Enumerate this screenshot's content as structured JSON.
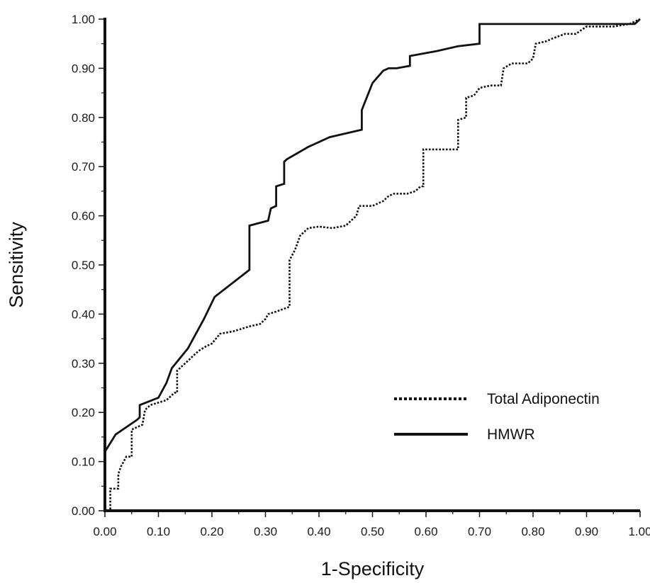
{
  "chart_data": {
    "type": "line",
    "title": "",
    "xlabel": "1-Specificity",
    "ylabel": "Sensitivity",
    "xlim": [
      0,
      1
    ],
    "ylim": [
      0,
      1
    ],
    "grid": false,
    "legend_position": "bottom-right",
    "x_ticks": [
      "0.00",
      "0.10",
      "0.20",
      "0.30",
      "0.40",
      "0.50",
      "0.60",
      "0.70",
      "0.80",
      "0.90",
      "1.00"
    ],
    "y_ticks": [
      "0.00",
      "0.10",
      "0.20",
      "0.30",
      "0.40",
      "0.50",
      "0.60",
      "0.70",
      "0.80",
      "0.90",
      "1.00"
    ],
    "series": [
      {
        "name": "Total Adiponectin",
        "style": "dotted",
        "color": "#111111",
        "points": [
          [
            0.0,
            0.0
          ],
          [
            0.01,
            0.0
          ],
          [
            0.01,
            0.045
          ],
          [
            0.025,
            0.045
          ],
          [
            0.025,
            0.075
          ],
          [
            0.03,
            0.09
          ],
          [
            0.04,
            0.11
          ],
          [
            0.05,
            0.11
          ],
          [
            0.05,
            0.165
          ],
          [
            0.06,
            0.17
          ],
          [
            0.07,
            0.175
          ],
          [
            0.075,
            0.205
          ],
          [
            0.085,
            0.215
          ],
          [
            0.1,
            0.22
          ],
          [
            0.115,
            0.225
          ],
          [
            0.13,
            0.24
          ],
          [
            0.135,
            0.24
          ],
          [
            0.135,
            0.285
          ],
          [
            0.145,
            0.295
          ],
          [
            0.16,
            0.31
          ],
          [
            0.175,
            0.325
          ],
          [
            0.19,
            0.335
          ],
          [
            0.2,
            0.34
          ],
          [
            0.215,
            0.36
          ],
          [
            0.24,
            0.365
          ],
          [
            0.27,
            0.375
          ],
          [
            0.29,
            0.38
          ],
          [
            0.3,
            0.39
          ],
          [
            0.305,
            0.4
          ],
          [
            0.32,
            0.405
          ],
          [
            0.345,
            0.415
          ],
          [
            0.345,
            0.51
          ],
          [
            0.355,
            0.53
          ],
          [
            0.365,
            0.56
          ],
          [
            0.38,
            0.575
          ],
          [
            0.4,
            0.578
          ],
          [
            0.425,
            0.575
          ],
          [
            0.45,
            0.58
          ],
          [
            0.46,
            0.59
          ],
          [
            0.47,
            0.6
          ],
          [
            0.475,
            0.62
          ],
          [
            0.5,
            0.62
          ],
          [
            0.52,
            0.63
          ],
          [
            0.53,
            0.64
          ],
          [
            0.54,
            0.645
          ],
          [
            0.565,
            0.645
          ],
          [
            0.58,
            0.65
          ],
          [
            0.59,
            0.66
          ],
          [
            0.595,
            0.66
          ],
          [
            0.595,
            0.735
          ],
          [
            0.66,
            0.735
          ],
          [
            0.66,
            0.795
          ],
          [
            0.675,
            0.8
          ],
          [
            0.675,
            0.84
          ],
          [
            0.69,
            0.845
          ],
          [
            0.7,
            0.86
          ],
          [
            0.72,
            0.865
          ],
          [
            0.74,
            0.865
          ],
          [
            0.745,
            0.9
          ],
          [
            0.76,
            0.91
          ],
          [
            0.79,
            0.91
          ],
          [
            0.8,
            0.92
          ],
          [
            0.805,
            0.95
          ],
          [
            0.825,
            0.955
          ],
          [
            0.835,
            0.96
          ],
          [
            0.86,
            0.97
          ],
          [
            0.88,
            0.97
          ],
          [
            0.9,
            0.985
          ],
          [
            0.95,
            0.985
          ],
          [
            0.98,
            0.99
          ],
          [
            1.0,
            1.0
          ]
        ]
      },
      {
        "name": "HMWR",
        "style": "solid",
        "color": "#111111",
        "points": [
          [
            0.0,
            0.0
          ],
          [
            0.0,
            0.12
          ],
          [
            0.02,
            0.155
          ],
          [
            0.06,
            0.185
          ],
          [
            0.065,
            0.19
          ],
          [
            0.065,
            0.215
          ],
          [
            0.1,
            0.23
          ],
          [
            0.115,
            0.26
          ],
          [
            0.125,
            0.29
          ],
          [
            0.155,
            0.33
          ],
          [
            0.185,
            0.39
          ],
          [
            0.205,
            0.435
          ],
          [
            0.27,
            0.49
          ],
          [
            0.27,
            0.58
          ],
          [
            0.305,
            0.59
          ],
          [
            0.31,
            0.615
          ],
          [
            0.32,
            0.62
          ],
          [
            0.32,
            0.66
          ],
          [
            0.335,
            0.665
          ],
          [
            0.335,
            0.71
          ],
          [
            0.34,
            0.715
          ],
          [
            0.38,
            0.74
          ],
          [
            0.42,
            0.76
          ],
          [
            0.48,
            0.775
          ],
          [
            0.48,
            0.815
          ],
          [
            0.5,
            0.87
          ],
          [
            0.52,
            0.895
          ],
          [
            0.53,
            0.9
          ],
          [
            0.545,
            0.9
          ],
          [
            0.57,
            0.905
          ],
          [
            0.57,
            0.925
          ],
          [
            0.62,
            0.935
          ],
          [
            0.66,
            0.945
          ],
          [
            0.7,
            0.95
          ],
          [
            0.7,
            0.99
          ],
          [
            0.99,
            0.99
          ],
          [
            1.0,
            1.0
          ]
        ]
      }
    ]
  }
}
